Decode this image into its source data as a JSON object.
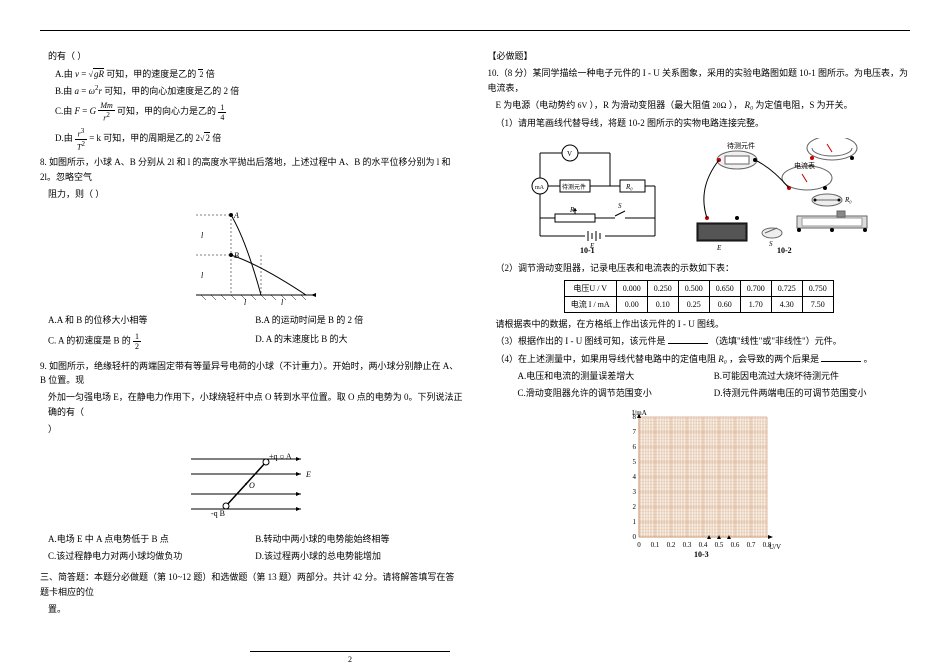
{
  "left": {
    "q7tail": {
      "intro": "的有（ ）",
      "optA_pre": "A.由 ",
      "optA_post": " 可知，甲的速度是乙的 ",
      "optA_eq": "v = √(gR)",
      "optA_val": "√2",
      "optA_end": " 倍",
      "optB_pre": "B.由 ",
      "optB_eq": "a = ω²r",
      "optB_post": " 可知，甲的向心加速度是乙的 2 倍",
      "optC_pre": "C.由 ",
      "optC_eq": "F = G",
      "optC_post": " 可知，甲的向心力是乙的 ",
      "optC_frac_n": "1",
      "optC_frac_d": "4",
      "optD_pre": "D.由 ",
      "optD_eq_n": "r³",
      "optD_eq_d": "T²",
      "optD_eq_post": " = k",
      "optD_post": " 可知，甲的周期是乙的 ",
      "optD_val": "2√2",
      "optD_end": " 倍"
    },
    "q8": {
      "text": "8. 如图所示，小球 A、B 分别从 2l 和 l 的高度水平抛出后落地，上述过程中 A、B 的水平位移分别为 l 和 2l。忽略空气",
      "text2": "阻力，则（ ）",
      "optA": "A.A 和 B 的位移大小相等",
      "optB": "B.A 的运动时间是 B 的 2 倍",
      "optC": "C. A 的初速度是 B 的 ",
      "optC_n": "1",
      "optC_d": "2",
      "optD": "D. A 的末速度比 B 的大"
    },
    "q9": {
      "text": "9. 如图所示，绝缘轻杆的两端固定带有等量异号电荷的小球（不计重力）。开始时，两小球分别静止在 A、B 位置。现",
      "text2": "外加一匀强电场 E，在静电力作用下，小球绕轻杆中点 O 转到水平位置。取 O 点的电势为 0。下列说法正确的有（",
      "text3": "）",
      "optA": "A.电场 E 中 A 点电势低于 B 点",
      "optB": "B.转动中两小球的电势能始终相等",
      "optC": "C.该过程静电力对两小球均做负功",
      "optD": "D.该过程两小球的总电势能增加"
    },
    "section": "三、简答题：本题分必做题（第 10~12 题）和选做题（第 13 题）两部分。共计 42 分。请将解答填写在答题卡相应的位",
    "section2": "置。"
  },
  "right": {
    "header": "【必做题】",
    "q10": {
      "text": "10.（8 分）某同学描绘一种电子元件的 I - U 关系图象，采用的实验电路图如题 10-1 图所示。为电压表，为电流表，",
      "text2_a": "E 为电源（电动势约 ",
      "text2_b": "6V",
      "text2_c": "），R 为滑动变阻器（最大阻值 ",
      "text2_d": "20Ω",
      "text2_e": "），",
      "text2_f": "R₀",
      "text2_g": " 为定值电阻，S 为开关。",
      "sub1": "（1）请用笔画线代替导线，将题 10-2 图所示的实物电路连接完整。",
      "lab_left": "待测元件",
      "lab_r0": "R₀",
      "lab_101": "10-1",
      "lab_102": "10-2",
      "lab_103": "10-3",
      "sub2": "（2）调节滑动变阻器，记录电压表和电流表的示数如下表：",
      "sub2b": "请根据表中的数据，在方格纸上作出该元件的 I - U 图线。",
      "sub3": "（3）根据作出的 I - U 图线可知，该元件是",
      "sub3_end": "（选填\"线性\"或\"非线性\"）元件。",
      "sub4_a": "（4）在上述测量中，如果用导线代替电路中的定值电阻 ",
      "sub4_b": "R₀",
      "sub4_c": "，会导致的两个后果是",
      "sub4_d": "。",
      "optA": "A.电压和电流的测量误差增大",
      "optB": "B.可能因电流过大烧坏待测元件",
      "optC": "C.滑动变阻器允许的调节范围变小",
      "optD": "D.待测元件两端电压的可调节范围变小"
    },
    "table": {
      "r1": [
        "电压U / V",
        "0.000",
        "0.250",
        "0.500",
        "0.650",
        "0.700",
        "0.725",
        "0.750"
      ],
      "r2": [
        "电流 I / mA",
        "0.00",
        "0.10",
        "0.25",
        "0.60",
        "1.70",
        "4.30",
        "7.50"
      ]
    },
    "grid": {
      "ylab": "I/mA",
      "xlab": "U/V",
      "xticks": [
        "0",
        "0.1",
        "0.2",
        "0.3",
        "0.4",
        "0.5",
        "0.6",
        "0.7",
        "0.8"
      ],
      "yticks": [
        "0",
        "1",
        "2",
        "3",
        "4",
        "5",
        "6",
        "7",
        "8"
      ]
    }
  },
  "page": "2"
}
